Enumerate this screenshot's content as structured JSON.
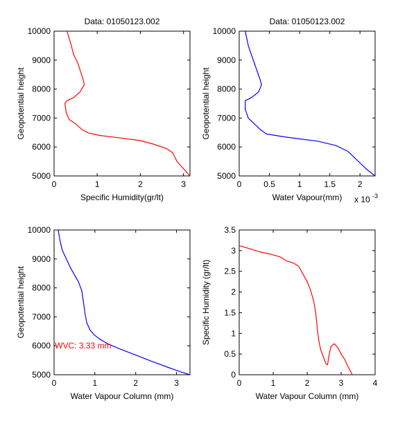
{
  "chart_data": [
    {
      "type": "line",
      "title": "Data: 01050123.002",
      "xlabel": "Specific Humidity(gr/lt)",
      "ylabel": "Geopotential height",
      "xlim": [
        0,
        3.15
      ],
      "ylim": [
        5000,
        10000
      ],
      "x_ticks": [
        0,
        1,
        2,
        3
      ],
      "y_ticks": [
        5000,
        6000,
        7000,
        8000,
        9000,
        10000
      ],
      "grid": false,
      "series": [
        {
          "color": "#ff0000",
          "x": [
            0.3,
            0.4,
            0.45,
            0.55,
            0.68,
            0.7,
            0.6,
            0.45,
            0.3,
            0.25,
            0.28,
            0.35,
            0.5,
            0.65,
            0.8,
            1.05,
            1.5,
            2.0,
            2.3,
            2.6,
            2.75,
            2.85,
            3.0,
            3.15
          ],
          "y": [
            10000,
            9500,
            9200,
            8900,
            8300,
            8150,
            7900,
            7700,
            7600,
            7500,
            7200,
            6950,
            6800,
            6600,
            6480,
            6400,
            6320,
            6220,
            6100,
            5950,
            5800,
            5500,
            5250,
            5000
          ]
        }
      ]
    },
    {
      "type": "line",
      "title": "Data: 01050123.002",
      "xlabel": "Water Vapour(mm)",
      "ylabel": "Geopotential height",
      "x_exponent_label": "x 10",
      "x_exponent_power": "-3",
      "xlim": [
        0,
        2.25
      ],
      "ylim": [
        5000,
        10000
      ],
      "x_ticks": [
        0,
        0.5,
        1,
        1.5,
        2
      ],
      "y_ticks": [
        5000,
        6000,
        7000,
        8000,
        9000,
        10000
      ],
      "grid": false,
      "series": [
        {
          "color": "#0000ff",
          "x": [
            0.1,
            0.15,
            0.2,
            0.25,
            0.35,
            0.37,
            0.32,
            0.2,
            0.1,
            0.1,
            0.15,
            0.25,
            0.35,
            0.45,
            0.75,
            1.0,
            1.3,
            1.6,
            1.8,
            1.95,
            2.1,
            2.25
          ],
          "y": [
            10000,
            9500,
            9200,
            8900,
            8300,
            8150,
            7900,
            7700,
            7600,
            7300,
            7000,
            6800,
            6600,
            6450,
            6350,
            6280,
            6200,
            6050,
            5850,
            5550,
            5250,
            5000
          ]
        }
      ]
    },
    {
      "type": "line",
      "title": "",
      "xlabel": "Water Vapour Column (mm)",
      "ylabel": "Geopotential height",
      "xlim": [
        0,
        3.33
      ],
      "ylim": [
        5000,
        10000
      ],
      "x_ticks": [
        0,
        1,
        2,
        3
      ],
      "y_ticks": [
        5000,
        6000,
        7000,
        8000,
        9000,
        10000
      ],
      "grid": false,
      "annotation": "WVC: 3.33 mm",
      "annotation_x": 0.02,
      "annotation_y": 6000,
      "series": [
        {
          "color": "#0000ff",
          "x": [
            0.1,
            0.15,
            0.2,
            0.3,
            0.4,
            0.5,
            0.6,
            0.68,
            0.72,
            0.76,
            0.8,
            0.88,
            0.98,
            1.1,
            1.3,
            1.6,
            2.0,
            2.4,
            2.8,
            3.1,
            3.33
          ],
          "y": [
            10000,
            9600,
            9300,
            9000,
            8700,
            8450,
            8200,
            7900,
            7500,
            7100,
            6800,
            6550,
            6380,
            6250,
            6080,
            5900,
            5680,
            5460,
            5250,
            5100,
            5000
          ]
        }
      ]
    },
    {
      "type": "line",
      "title": "",
      "xlabel": "Water Vapour Column (mm)",
      "ylabel": "Specific Humidity (gr/lt)",
      "xlim": [
        0,
        4
      ],
      "ylim": [
        0,
        3.5
      ],
      "x_ticks": [
        0,
        1,
        2,
        3,
        4
      ],
      "y_ticks": [
        0,
        0.5,
        1,
        1.5,
        2,
        2.5,
        3,
        3.5
      ],
      "grid": false,
      "series": [
        {
          "color": "#ff0000",
          "x": [
            0,
            0.3,
            0.6,
            0.9,
            1.2,
            1.4,
            1.6,
            1.75,
            1.9,
            2.0,
            2.1,
            2.2,
            2.25,
            2.3,
            2.35,
            2.4,
            2.5,
            2.55,
            2.6,
            2.65,
            2.7,
            2.8,
            2.9,
            3.0,
            3.1,
            3.2,
            3.33
          ],
          "y": [
            3.12,
            3.05,
            2.97,
            2.92,
            2.85,
            2.75,
            2.7,
            2.62,
            2.4,
            2.25,
            2.05,
            1.75,
            1.5,
            1.1,
            0.8,
            0.6,
            0.38,
            0.27,
            0.24,
            0.5,
            0.68,
            0.75,
            0.66,
            0.5,
            0.38,
            0.2,
            0.0
          ]
        }
      ]
    }
  ]
}
